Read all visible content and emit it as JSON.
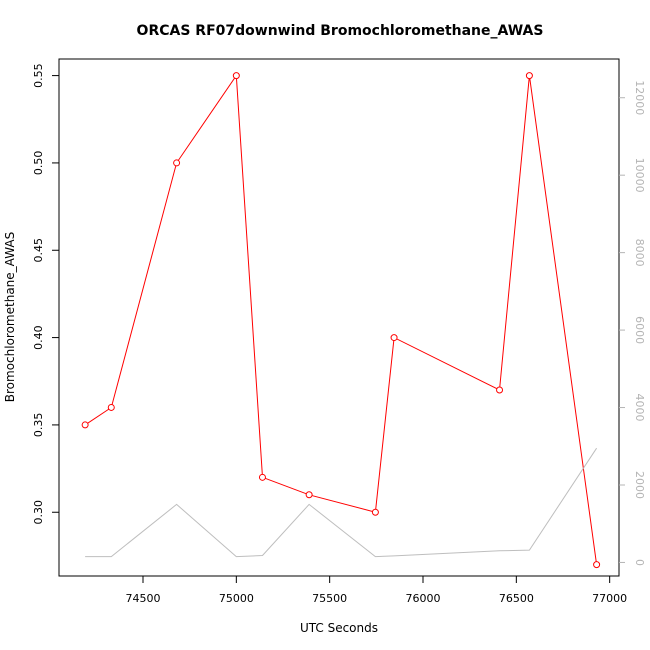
{
  "chart_data": {
    "type": "line",
    "title": "ORCAS RF07downwind Bromochloromethane_AWAS",
    "xlabel": "UTC Seconds",
    "ylabel": "Bromochloromethane_AWAS",
    "y2label": "",
    "xlim": [
      74050,
      77050
    ],
    "ylim": [
      0.2635,
      0.5595
    ],
    "y2lim": [
      -350,
      13000
    ],
    "x_ticks": [
      74500,
      75000,
      75500,
      76000,
      76500,
      77000
    ],
    "y_ticks": [
      0.3,
      0.35,
      0.4,
      0.45,
      0.5,
      0.55
    ],
    "y2_ticks": [
      0,
      2000,
      4000,
      6000,
      8000,
      10000,
      12000
    ],
    "grid": false,
    "series": [
      {
        "axis": "left",
        "color": "#ff0000",
        "marker": "open-circle",
        "x": [
          74190,
          74330,
          74680,
          75000,
          75140,
          75390,
          75745,
          75845,
          76410,
          76570,
          76930
        ],
        "y": [
          0.35,
          0.36,
          0.5,
          0.55,
          0.32,
          0.31,
          0.3,
          0.4,
          0.37,
          0.55,
          0.27
        ]
      },
      {
        "axis": "right",
        "color": "#bebebe",
        "marker": "none",
        "x": [
          74190,
          74330,
          74680,
          75000,
          75140,
          75390,
          75745,
          75845,
          76410,
          76570,
          76930
        ],
        "y": [
          150,
          150,
          1500,
          150,
          180,
          1500,
          150,
          170,
          300,
          320,
          2950
        ]
      }
    ]
  }
}
